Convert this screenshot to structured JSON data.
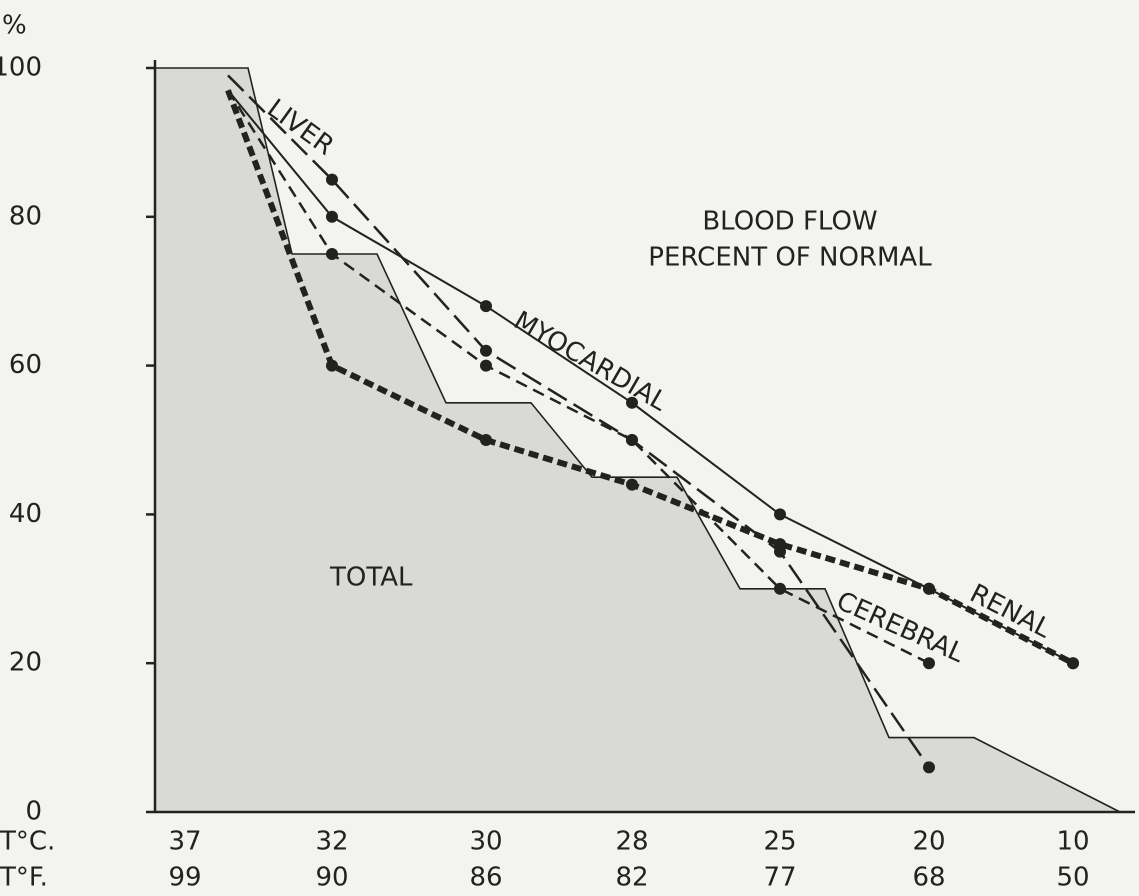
{
  "chart_data": {
    "type": "line",
    "title": "BLOOD FLOW",
    "subtitle": "PERCENT OF NORMAL",
    "y_label": "%",
    "x_label_c": "T°C.",
    "x_label_f": "T°F.",
    "categories": [
      "37",
      null,
      "32",
      "30",
      "28",
      "25",
      "20",
      "10"
    ],
    "categories_f": [
      "99",
      null,
      "90",
      "86",
      "82",
      "77",
      "68",
      "50"
    ],
    "ylim": [
      0,
      100
    ],
    "yticks": [
      0,
      20,
      40,
      60,
      80,
      100
    ],
    "total": {
      "name": "TOTAL",
      "color": "#d9d9d6",
      "values": [
        100,
        100,
        75,
        55,
        45,
        30,
        10,
        0
      ]
    },
    "series": [
      {
        "name": "LIVER",
        "color": "#222222",
        "dash": "22 8",
        "width": 2.5,
        "values": [
          null,
          99,
          85,
          62,
          50,
          35,
          6,
          null
        ]
      },
      {
        "name": "MYOCARDIAL",
        "color": "#222222",
        "dash": "none",
        "width": 2,
        "values": [
          null,
          97,
          80,
          68,
          55,
          40,
          30,
          20
        ]
      },
      {
        "name": "CEREBRAL",
        "color": "#222222",
        "dash": "12 7",
        "width": 2.5,
        "values": [
          null,
          97,
          75,
          60,
          50,
          30,
          20,
          null
        ]
      },
      {
        "name": "RENAL",
        "color": "#222222",
        "dash": "10 5",
        "width": 6,
        "values": [
          null,
          97,
          60,
          50,
          44,
          36,
          30,
          20
        ]
      }
    ]
  }
}
